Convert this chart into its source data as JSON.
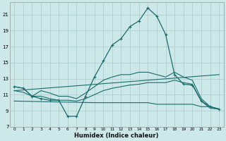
{
  "xlabel": "Humidex (Indice chaleur)",
  "xlim": [
    -0.5,
    23.5
  ],
  "ylim": [
    7,
    22.5
  ],
  "xticks": [
    0,
    1,
    2,
    3,
    4,
    5,
    6,
    7,
    8,
    9,
    10,
    11,
    12,
    13,
    14,
    15,
    16,
    17,
    18,
    19,
    20,
    21,
    22,
    23
  ],
  "yticks": [
    7,
    9,
    11,
    13,
    15,
    17,
    19,
    21
  ],
  "bg_color": "#cce8e8",
  "grid_color": "#aacccc",
  "line_color": "#1a6b6b",
  "series": {
    "main": {
      "x": [
        0,
        1,
        2,
        3,
        4,
        5,
        6,
        7,
        8,
        9,
        10,
        11,
        12,
        13,
        14,
        15,
        16,
        17,
        18,
        19,
        20,
        21,
        22,
        23
      ],
      "y": [
        12.0,
        11.8,
        10.8,
        10.5,
        10.3,
        10.3,
        8.3,
        8.3,
        10.8,
        13.2,
        15.2,
        17.2,
        18.0,
        19.5,
        20.2,
        21.8,
        20.8,
        18.5,
        13.5,
        12.3,
        12.2,
        10.2,
        9.5,
        9.2
      ]
    },
    "upper_env": {
      "x": [
        0,
        1,
        2,
        3,
        4,
        5,
        6,
        7,
        8,
        9,
        10,
        11,
        12,
        13,
        14,
        15,
        16,
        17,
        18,
        19,
        20,
        21,
        22,
        23
      ],
      "y": [
        12.0,
        11.8,
        10.8,
        11.5,
        11.2,
        10.8,
        10.8,
        10.5,
        11.2,
        12.0,
        12.8,
        13.2,
        13.5,
        13.5,
        13.8,
        13.8,
        13.5,
        13.2,
        13.8,
        13.2,
        12.8,
        10.5,
        9.5,
        9.2
      ]
    },
    "mid_env": {
      "x": [
        0,
        1,
        2,
        3,
        4,
        5,
        6,
        7,
        8,
        9,
        10,
        11,
        12,
        13,
        14,
        15,
        16,
        17,
        18,
        19,
        20,
        21,
        22,
        23
      ],
      "y": [
        11.5,
        11.3,
        10.8,
        10.8,
        10.5,
        10.3,
        10.3,
        10.2,
        10.5,
        11.0,
        11.5,
        11.8,
        12.0,
        12.2,
        12.3,
        12.5,
        12.5,
        12.5,
        12.8,
        12.5,
        12.3,
        10.2,
        9.3,
        9.2
      ]
    },
    "lower_env": {
      "x": [
        0,
        9,
        10,
        11,
        12,
        13,
        14,
        15,
        16,
        17,
        18,
        19,
        20,
        21,
        22,
        23
      ],
      "y": [
        10.2,
        10.0,
        10.0,
        10.0,
        10.0,
        10.0,
        10.0,
        10.0,
        9.8,
        9.8,
        9.8,
        9.8,
        9.8,
        9.5,
        9.5,
        9.2
      ]
    },
    "trend": {
      "x": [
        0,
        23
      ],
      "y": [
        11.5,
        13.5
      ]
    }
  }
}
